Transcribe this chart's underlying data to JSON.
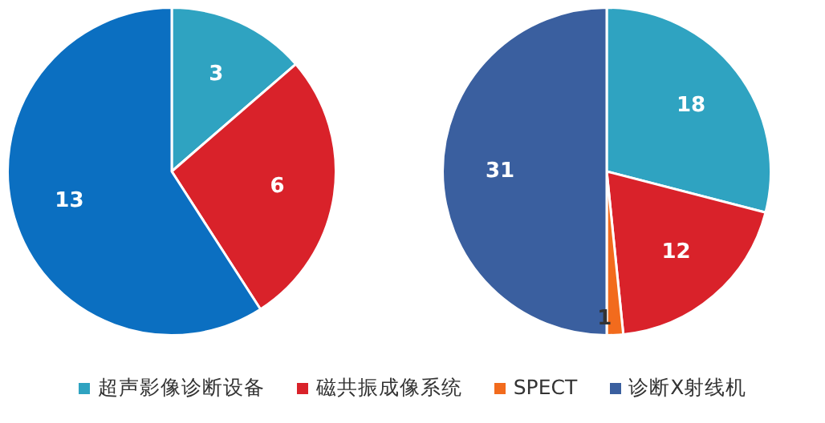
{
  "chart_data": [
    {
      "type": "pie",
      "categories": [
        null,
        null,
        null,
        null
      ],
      "values": [
        3,
        6,
        null,
        13
      ],
      "colors": [
        "#2fa3c1",
        "#d9222a",
        "#f26b1d",
        "#0b6fc1"
      ],
      "data_labels": true,
      "legend": false
    },
    {
      "type": "pie",
      "categories": [
        "超声影像诊断设备",
        "磁共振成像系统",
        "SPECT",
        "诊断X射线机"
      ],
      "values": [
        18,
        12,
        1,
        31
      ],
      "colors": [
        "#2fa3c1",
        "#d9222a",
        "#f26b1d",
        "#3a5f9f"
      ],
      "data_labels": true,
      "legend": "bottom"
    }
  ]
}
